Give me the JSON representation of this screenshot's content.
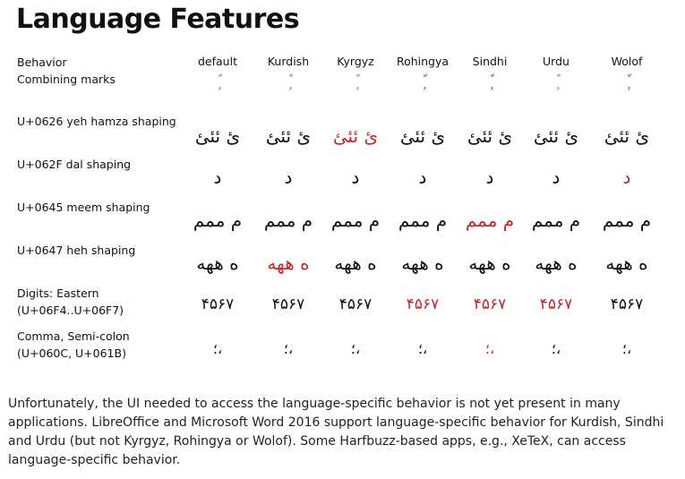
{
  "title": "Language Features",
  "header_label": "Behavior",
  "languages": [
    "default",
    "Kurdish",
    "Kyrgyz",
    "Rohingya",
    "Sindhi",
    "Urdu",
    "Wolof"
  ],
  "highlight_color": "#c0272d",
  "rows": [
    {
      "label": "Combining marks",
      "label2": "",
      "glyph": "ٍْٜ٘",
      "cell_class": "comb",
      "red": [
        false,
        false,
        false,
        true,
        true,
        false,
        true
      ]
    },
    {
      "label": "U+0626 yeh hamza shaping",
      "label2": "",
      "glyph": "ئ ئئئ",
      "cell_class": "ar",
      "red": [
        false,
        false,
        true,
        false,
        false,
        false,
        false
      ]
    },
    {
      "label": "U+062F dal shaping",
      "label2": "",
      "glyph": "د",
      "cell_class": "ar",
      "red": [
        false,
        false,
        false,
        false,
        false,
        false,
        true
      ]
    },
    {
      "label": "U+0645 meem shaping",
      "label2": "",
      "glyph": "م ممم",
      "cell_class": "ar",
      "red": [
        false,
        false,
        false,
        false,
        true,
        false,
        false
      ]
    },
    {
      "label": "U+0647 heh shaping",
      "label2": "",
      "glyph": "ه ههه",
      "cell_class": "ar",
      "red": [
        false,
        true,
        false,
        false,
        false,
        false,
        false
      ]
    },
    {
      "label": "Digits: Eastern",
      "label2": "(U+06F4..U+06F7)",
      "glyph": "۴۵۶۷",
      "cell_class": "dg",
      "red": [
        false,
        false,
        false,
        true,
        true,
        true,
        false
      ]
    },
    {
      "label": "Comma, Semi-colon",
      "label2": "(U+060C, U+061B)",
      "glyph": "،؛",
      "cell_class": "pn",
      "red": [
        false,
        false,
        false,
        false,
        true,
        false,
        false
      ]
    }
  ],
  "footer": "Unfortunately, the UI needed to access the language-specific behavior is not yet present in many applications. LibreOffice and Microsoft Word 2016 support language-specific behavior for Kurdish, Sindhi and Urdu (but not Kyrgyz, Rohingya or Wolof). Some Harfbuzz-based apps, e.g., XeTeX, can access language-specific behavior."
}
